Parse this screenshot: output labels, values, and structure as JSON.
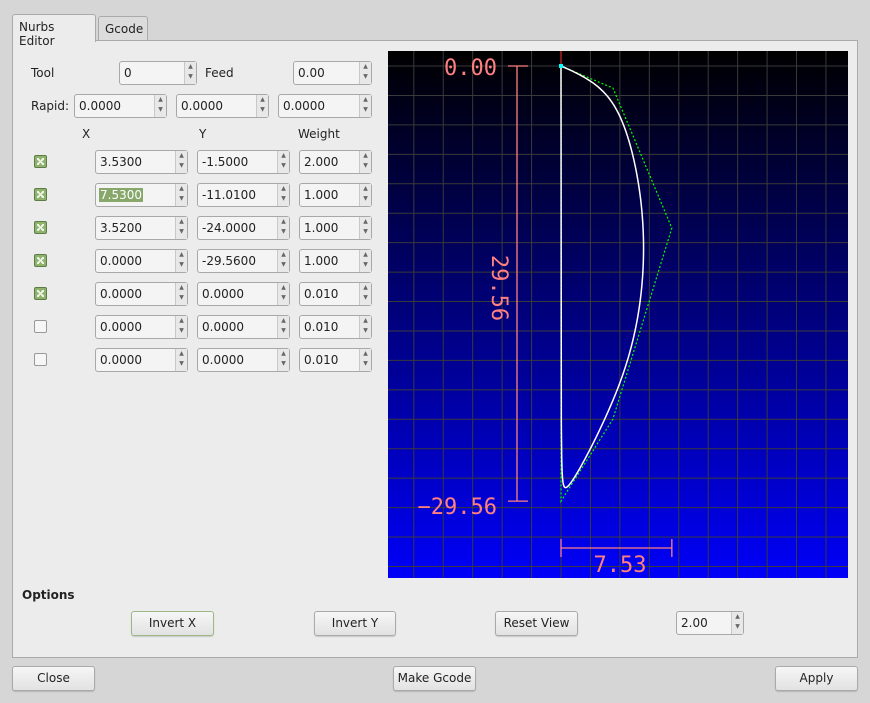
{
  "tabs": [
    {
      "label": "Nurbs Editor",
      "active": true
    },
    {
      "label": "Gcode",
      "active": false
    }
  ],
  "tool": {
    "label": "Tool",
    "value": "0"
  },
  "feed": {
    "label": "Feed",
    "value": "0.00"
  },
  "rapid": {
    "label": "Rapid:",
    "values": [
      "0.0000",
      "0.0000",
      "0.0000"
    ]
  },
  "columns": {
    "x": "X",
    "y": "Y",
    "weight": "Weight"
  },
  "rows": [
    {
      "enabled": true,
      "x": "3.5300",
      "y": "-1.5000",
      "w": "2.000"
    },
    {
      "enabled": true,
      "x": "7.5300",
      "y": "-11.0100",
      "w": "1.000",
      "selected": true
    },
    {
      "enabled": true,
      "x": "3.5200",
      "y": "-24.0000",
      "w": "1.000"
    },
    {
      "enabled": true,
      "x": "0.0000",
      "y": "-29.5600",
      "w": "1.000"
    },
    {
      "enabled": true,
      "x": "0.0000",
      "y": "0.0000",
      "w": "0.010"
    },
    {
      "enabled": false,
      "x": "0.0000",
      "y": "0.0000",
      "w": "0.010"
    },
    {
      "enabled": false,
      "x": "0.0000",
      "y": "0.0000",
      "w": "0.010"
    }
  ],
  "preview": {
    "labels": {
      "top": "0.00",
      "bottom": "−29.56",
      "height": "29.56",
      "width": "7.53"
    },
    "colors": {
      "bg_top": "#000000",
      "bg_bottom": "#0000f8",
      "grid": "#3a3a3a",
      "dimension": "#ff8080",
      "curve": "#ffffff",
      "polygon": "#00ff00",
      "start": "#00ffff"
    },
    "grid_step": 2
  },
  "options": {
    "title": "Options",
    "invert_x": "Invert X",
    "invert_y": "Invert Y",
    "reset_view": "Reset View",
    "scale": "2.00"
  },
  "footer": {
    "close": "Close",
    "make_gcode": "Make Gcode",
    "apply": "Apply"
  }
}
